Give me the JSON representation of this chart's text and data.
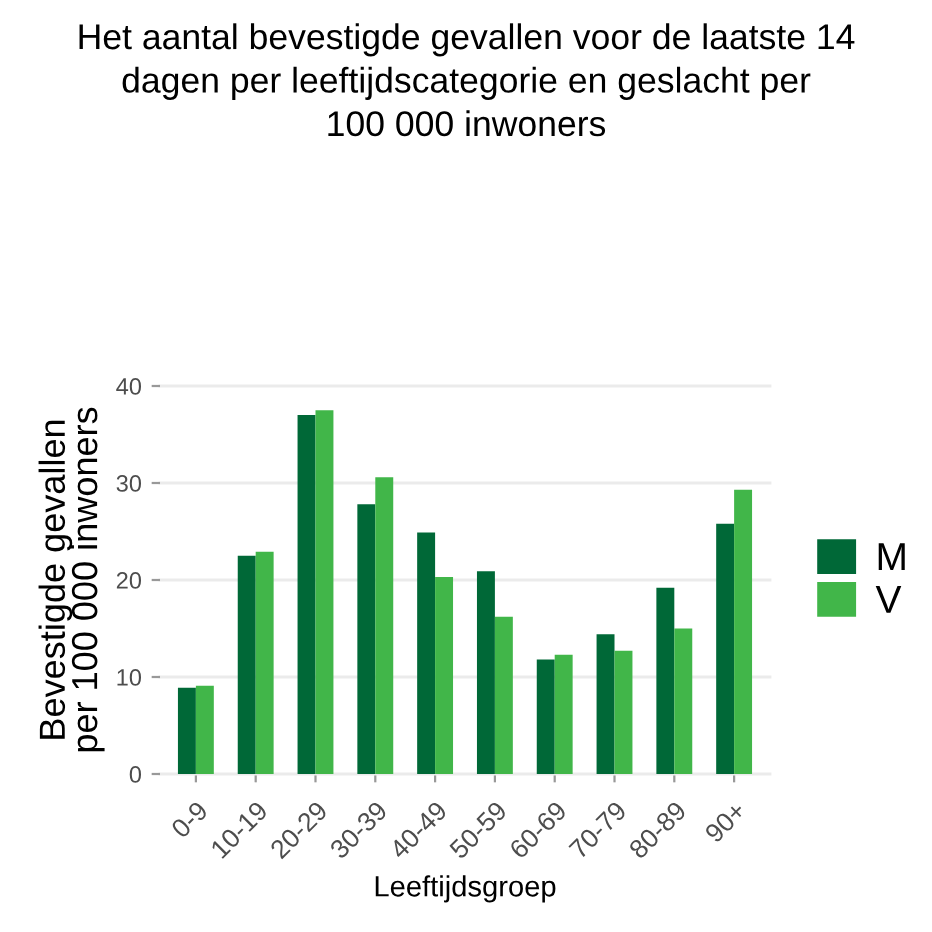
{
  "chart_data": {
    "type": "bar",
    "title": "Het aantal bevestigde gevallen voor de laatste 14\ndagen per leeftijdscategorie en geslacht per\n100 000 inwoners",
    "xlabel": "Leeftijdsgroep",
    "ylabel": "Bevestigde gevallen\nper 100 000 inwoners",
    "categories": [
      "0-9",
      "10-19",
      "20-29",
      "30-39",
      "40-49",
      "50-59",
      "60-69",
      "70-79",
      "80-89",
      "90+"
    ],
    "series": [
      {
        "name": "M",
        "color": "#006837",
        "values": [
          8.9,
          22.5,
          37.0,
          27.8,
          24.9,
          20.9,
          11.8,
          14.4,
          19.2,
          25.8
        ]
      },
      {
        "name": "V",
        "color": "#41b649",
        "values": [
          9.1,
          22.9,
          37.5,
          30.6,
          20.3,
          16.2,
          12.3,
          12.7,
          15.0,
          29.3
        ]
      }
    ],
    "ylim": [
      0,
      40
    ],
    "yticks": [
      0,
      10,
      20,
      30,
      40
    ],
    "grid": "y",
    "legend": "right"
  }
}
